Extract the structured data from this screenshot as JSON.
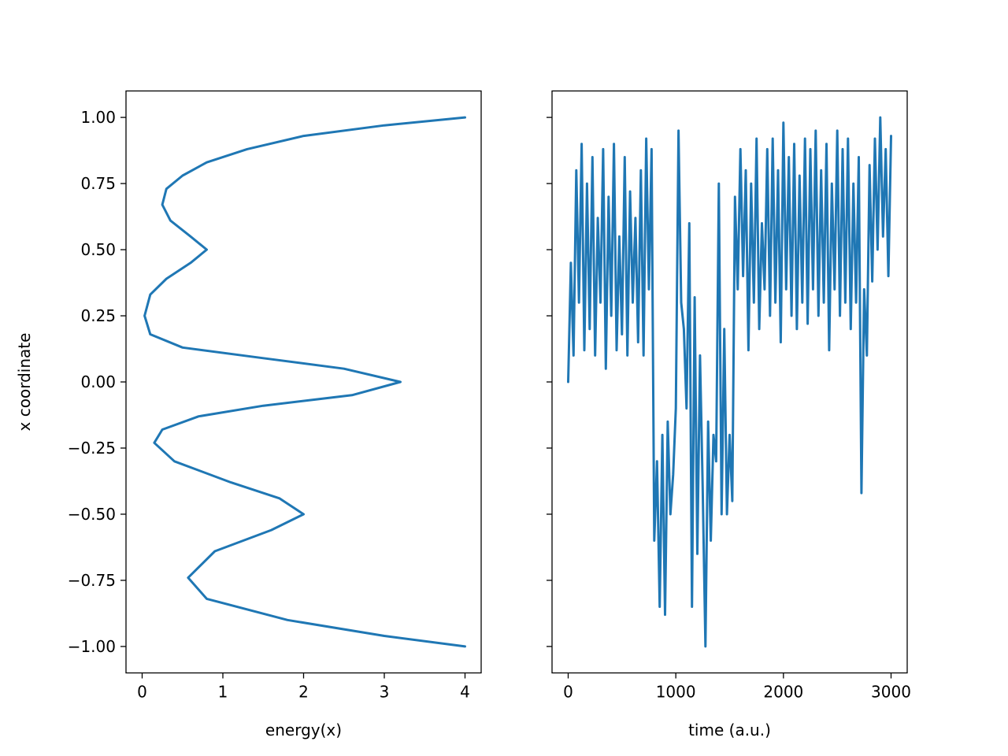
{
  "figure": {
    "background": "#ffffff",
    "line_color": "#1f77b4"
  },
  "chart_data": [
    {
      "type": "line",
      "title": "",
      "xlabel": "energy(x)",
      "ylabel": "x coordinate",
      "xlim": [
        -0.2,
        4.2
      ],
      "ylim": [
        -1.1,
        1.1
      ],
      "xticks": [
        0,
        1,
        2,
        3,
        4
      ],
      "xtick_labels": [
        "0",
        "1",
        "2",
        "3",
        "4"
      ],
      "yticks": [
        1.0,
        0.75,
        0.5,
        0.25,
        0.0,
        -0.25,
        -0.5,
        -0.75,
        -1.0
      ],
      "ytick_labels": [
        "1.00",
        "0.75",
        "0.50",
        "0.25",
        "0.00",
        "−0.25",
        "−0.50",
        "−0.75",
        "−1.00"
      ],
      "grid": false,
      "legend": "none",
      "series": [
        {
          "color": "#1f77b4",
          "x": [
            4.0,
            3.0,
            2.0,
            1.3,
            0.8,
            0.5,
            0.3,
            0.25,
            0.35,
            0.6,
            0.8,
            0.6,
            0.3,
            0.1,
            0.03,
            0.1,
            0.5,
            1.5,
            2.5,
            3.2,
            2.6,
            1.5,
            0.7,
            0.25,
            0.15,
            0.4,
            1.1,
            1.7,
            2.0,
            1.6,
            0.9,
            0.57,
            0.8,
            1.8,
            3.0,
            4.0
          ],
          "y": [
            1.0,
            0.97,
            0.93,
            0.88,
            0.83,
            0.78,
            0.73,
            0.67,
            0.61,
            0.55,
            0.5,
            0.45,
            0.39,
            0.33,
            0.25,
            0.18,
            0.13,
            0.09,
            0.05,
            0.0,
            -0.05,
            -0.09,
            -0.13,
            -0.18,
            -0.23,
            -0.3,
            -0.38,
            -0.44,
            -0.5,
            -0.56,
            -0.64,
            -0.74,
            -0.82,
            -0.9,
            -0.96,
            -1.0
          ]
        }
      ]
    },
    {
      "type": "line",
      "title": "",
      "xlabel": "time (a.u.)",
      "ylabel": "",
      "xlim": [
        -150,
        3150
      ],
      "ylim": [
        -1.1,
        1.1
      ],
      "shared_y": true,
      "xticks": [
        0,
        1000,
        2000,
        3000
      ],
      "xtick_labels": [
        "0",
        "1000",
        "2000",
        "3000"
      ],
      "grid": false,
      "legend": "none",
      "series": [
        {
          "color": "#1f77b4",
          "x": [
            0,
            25,
            50,
            75,
            100,
            125,
            150,
            175,
            200,
            225,
            250,
            275,
            300,
            325,
            350,
            375,
            400,
            425,
            450,
            475,
            500,
            525,
            550,
            575,
            600,
            625,
            650,
            675,
            700,
            725,
            750,
            775,
            800,
            825,
            850,
            875,
            900,
            925,
            950,
            975,
            1000,
            1025,
            1050,
            1075,
            1100,
            1125,
            1150,
            1175,
            1200,
            1225,
            1250,
            1275,
            1300,
            1325,
            1350,
            1375,
            1400,
            1425,
            1450,
            1475,
            1500,
            1525,
            1550,
            1575,
            1600,
            1625,
            1650,
            1675,
            1700,
            1725,
            1750,
            1775,
            1800,
            1825,
            1850,
            1875,
            1900,
            1925,
            1950,
            1975,
            2000,
            2025,
            2050,
            2075,
            2100,
            2125,
            2150,
            2175,
            2200,
            2225,
            2250,
            2275,
            2300,
            2325,
            2350,
            2375,
            2400,
            2425,
            2450,
            2475,
            2500,
            2525,
            2550,
            2575,
            2600,
            2625,
            2650,
            2675,
            2700,
            2725,
            2750,
            2775,
            2800,
            2825,
            2850,
            2875,
            2900,
            2925,
            2950,
            2975,
            3000
          ],
          "y": [
            0.0,
            0.45,
            0.1,
            0.8,
            0.3,
            0.9,
            0.12,
            0.75,
            0.2,
            0.85,
            0.1,
            0.62,
            0.3,
            0.88,
            0.05,
            0.7,
            0.25,
            0.9,
            0.12,
            0.55,
            0.18,
            0.85,
            0.1,
            0.72,
            0.3,
            0.62,
            0.15,
            0.8,
            0.1,
            0.92,
            0.35,
            0.88,
            -0.6,
            -0.3,
            -0.85,
            -0.2,
            -0.88,
            -0.15,
            -0.5,
            -0.35,
            -0.1,
            0.95,
            0.3,
            0.2,
            -0.1,
            0.6,
            -0.85,
            0.32,
            -0.65,
            0.1,
            -0.4,
            -1.0,
            -0.15,
            -0.6,
            -0.2,
            -0.3,
            0.75,
            -0.5,
            0.2,
            -0.5,
            -0.2,
            -0.45,
            0.7,
            0.35,
            0.88,
            0.4,
            0.8,
            0.12,
            0.75,
            0.3,
            0.92,
            0.2,
            0.6,
            0.35,
            0.88,
            0.25,
            0.92,
            0.3,
            0.8,
            0.15,
            0.98,
            0.35,
            0.85,
            0.25,
            0.9,
            0.2,
            0.78,
            0.3,
            0.92,
            0.22,
            0.88,
            0.35,
            0.95,
            0.25,
            0.8,
            0.3,
            0.9,
            0.12,
            0.75,
            0.35,
            0.95,
            0.25,
            0.88,
            0.3,
            0.92,
            0.2,
            0.75,
            0.3,
            0.85,
            -0.42,
            0.35,
            0.1,
            0.82,
            0.38,
            0.92,
            0.5,
            1.0,
            0.55,
            0.88,
            0.4,
            0.93
          ]
        }
      ]
    }
  ]
}
